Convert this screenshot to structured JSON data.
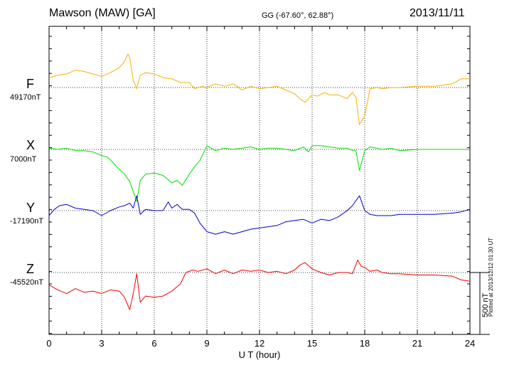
{
  "header": {
    "station": "Mawson (MAW)  [GA]",
    "coords": "GG (-67.60°,  62.88°)",
    "date": "2013/11/11"
  },
  "footer": {
    "plotted": "Plotted at 2013/12/12 01:30 UT"
  },
  "scale": {
    "label": "500 nT",
    "value_nT": 500
  },
  "chart_data": {
    "type": "line",
    "xlabel": "U T (hour)",
    "xlim": [
      0,
      24
    ],
    "xticks": [
      0,
      3,
      6,
      9,
      12,
      15,
      18,
      21,
      24
    ],
    "x_tick_labels": [
      "0",
      "3",
      "6",
      "9",
      "12",
      "15",
      "18",
      "21",
      "24"
    ],
    "grid": true,
    "series": [
      {
        "name": "F",
        "baseline_label": "49170nT",
        "baseline_nT": 49170,
        "color": "#f5b000",
        "x": [
          0,
          0.5,
          1,
          1.5,
          2,
          2.5,
          3,
          3.5,
          4,
          4.3,
          4.5,
          4.6,
          4.8,
          5.0,
          5.2,
          5.5,
          6,
          6.5,
          7,
          7.5,
          8,
          8.3,
          8.7,
          9,
          9.5,
          10,
          10.5,
          11,
          11.5,
          12,
          12.5,
          13,
          13.5,
          14,
          14.3,
          14.6,
          15,
          15.3,
          15.7,
          16,
          16.5,
          17,
          17.3,
          17.5,
          17.7,
          18,
          18.3,
          18.7,
          19,
          19.5,
          20,
          21,
          22,
          23,
          23.5,
          24
        ],
        "y": [
          80,
          100,
          110,
          140,
          130,
          110,
          90,
          120,
          160,
          210,
          270,
          240,
          60,
          -10,
          100,
          120,
          110,
          80,
          70,
          40,
          40,
          -10,
          10,
          0,
          30,
          10,
          30,
          -20,
          10,
          -10,
          0,
          10,
          -20,
          -50,
          -90,
          -120,
          -60,
          -70,
          -40,
          -60,
          -60,
          -90,
          -40,
          -80,
          -300,
          -230,
          -10,
          0,
          -10,
          0,
          0,
          10,
          10,
          30,
          70,
          70
        ]
      },
      {
        "name": "X",
        "baseline_label": "7000nT",
        "baseline_nT": 7000,
        "color": "#00dd00",
        "x": [
          0,
          0.5,
          1,
          1.5,
          2,
          2.5,
          3,
          3.3,
          3.6,
          4,
          4.3,
          4.6,
          4.8,
          5.0,
          5.2,
          5.5,
          6,
          6.5,
          7,
          7.3,
          7.6,
          8,
          8.3,
          8.6,
          9,
          9.5,
          10,
          10.5,
          11,
          11.5,
          12,
          12.5,
          13,
          13.5,
          14,
          14.5,
          14.8,
          15,
          15.5,
          16,
          16.5,
          17,
          17.3,
          17.5,
          17.7,
          18,
          18.3,
          18.7,
          19,
          19.5,
          20,
          21,
          22,
          23,
          24
        ],
        "y": [
          10,
          0,
          10,
          -10,
          -10,
          -20,
          -50,
          -60,
          -100,
          -160,
          -200,
          -260,
          -340,
          -420,
          -250,
          -200,
          -190,
          -210,
          -270,
          -250,
          -290,
          -200,
          -140,
          -90,
          30,
          -10,
          10,
          0,
          10,
          20,
          0,
          10,
          10,
          0,
          -10,
          20,
          -20,
          30,
          30,
          20,
          10,
          10,
          -10,
          -10,
          -170,
          -10,
          20,
          10,
          0,
          10,
          -10,
          0,
          0,
          0,
          0
        ]
      },
      {
        "name": "Y",
        "baseline_label": "-17190nT",
        "baseline_nT": -17190,
        "color": "#0000cc",
        "x": [
          0,
          0.3,
          0.6,
          1,
          1.5,
          2,
          2.5,
          3,
          3.5,
          4,
          4.3,
          4.6,
          4.8,
          5.0,
          5.2,
          5.5,
          6,
          6.5,
          6.8,
          7,
          7.3,
          7.6,
          8,
          8.3,
          8.6,
          9,
          9.5,
          10,
          10.5,
          11,
          11.5,
          12,
          12.5,
          13,
          13.5,
          14,
          14.5,
          15,
          15.5,
          16,
          16.5,
          17,
          17.3,
          17.7,
          18,
          18.3,
          18.7,
          19,
          19.5,
          20,
          21,
          22,
          23,
          23.5,
          24
        ],
        "y": [
          -40,
          10,
          40,
          50,
          20,
          10,
          0,
          -40,
          0,
          30,
          40,
          60,
          20,
          120,
          -30,
          10,
          0,
          0,
          70,
          20,
          50,
          10,
          10,
          -20,
          -100,
          -170,
          -190,
          -170,
          -190,
          -170,
          -150,
          -140,
          -130,
          -120,
          -90,
          -80,
          -70,
          -100,
          -70,
          -80,
          -50,
          0,
          40,
          120,
          0,
          -30,
          -40,
          -40,
          -40,
          -30,
          -30,
          -30,
          -20,
          -10,
          10
        ]
      },
      {
        "name": "Z",
        "baseline_label": "-45520nT",
        "baseline_nT": -45520,
        "color": "#ee0000",
        "x": [
          0,
          0.5,
          1,
          1.5,
          2,
          2.5,
          3,
          3.5,
          4,
          4.3,
          4.6,
          4.8,
          5.0,
          5.2,
          5.5,
          6,
          6.5,
          7,
          7.5,
          7.8,
          8.2,
          8.5,
          9,
          9.5,
          10,
          10.5,
          11,
          11.5,
          12,
          12.5,
          13,
          13.5,
          14,
          14.3,
          14.6,
          15,
          15.5,
          16,
          16.5,
          17,
          17.3,
          17.6,
          17.8,
          18,
          18.3,
          18.7,
          19,
          19.5,
          20,
          21,
          22,
          23,
          23.5,
          24
        ],
        "y": [
          -100,
          -140,
          -170,
          -130,
          -160,
          -150,
          -170,
          -140,
          -150,
          -200,
          -300,
          -170,
          -10,
          -240,
          -190,
          -200,
          -190,
          -150,
          -90,
          0,
          20,
          10,
          30,
          -10,
          20,
          -10,
          20,
          10,
          20,
          0,
          10,
          -10,
          20,
          60,
          80,
          30,
          0,
          -20,
          0,
          0,
          -10,
          100,
          50,
          40,
          10,
          20,
          0,
          -10,
          -10,
          -20,
          -20,
          -30,
          -60,
          -70
        ]
      }
    ]
  }
}
